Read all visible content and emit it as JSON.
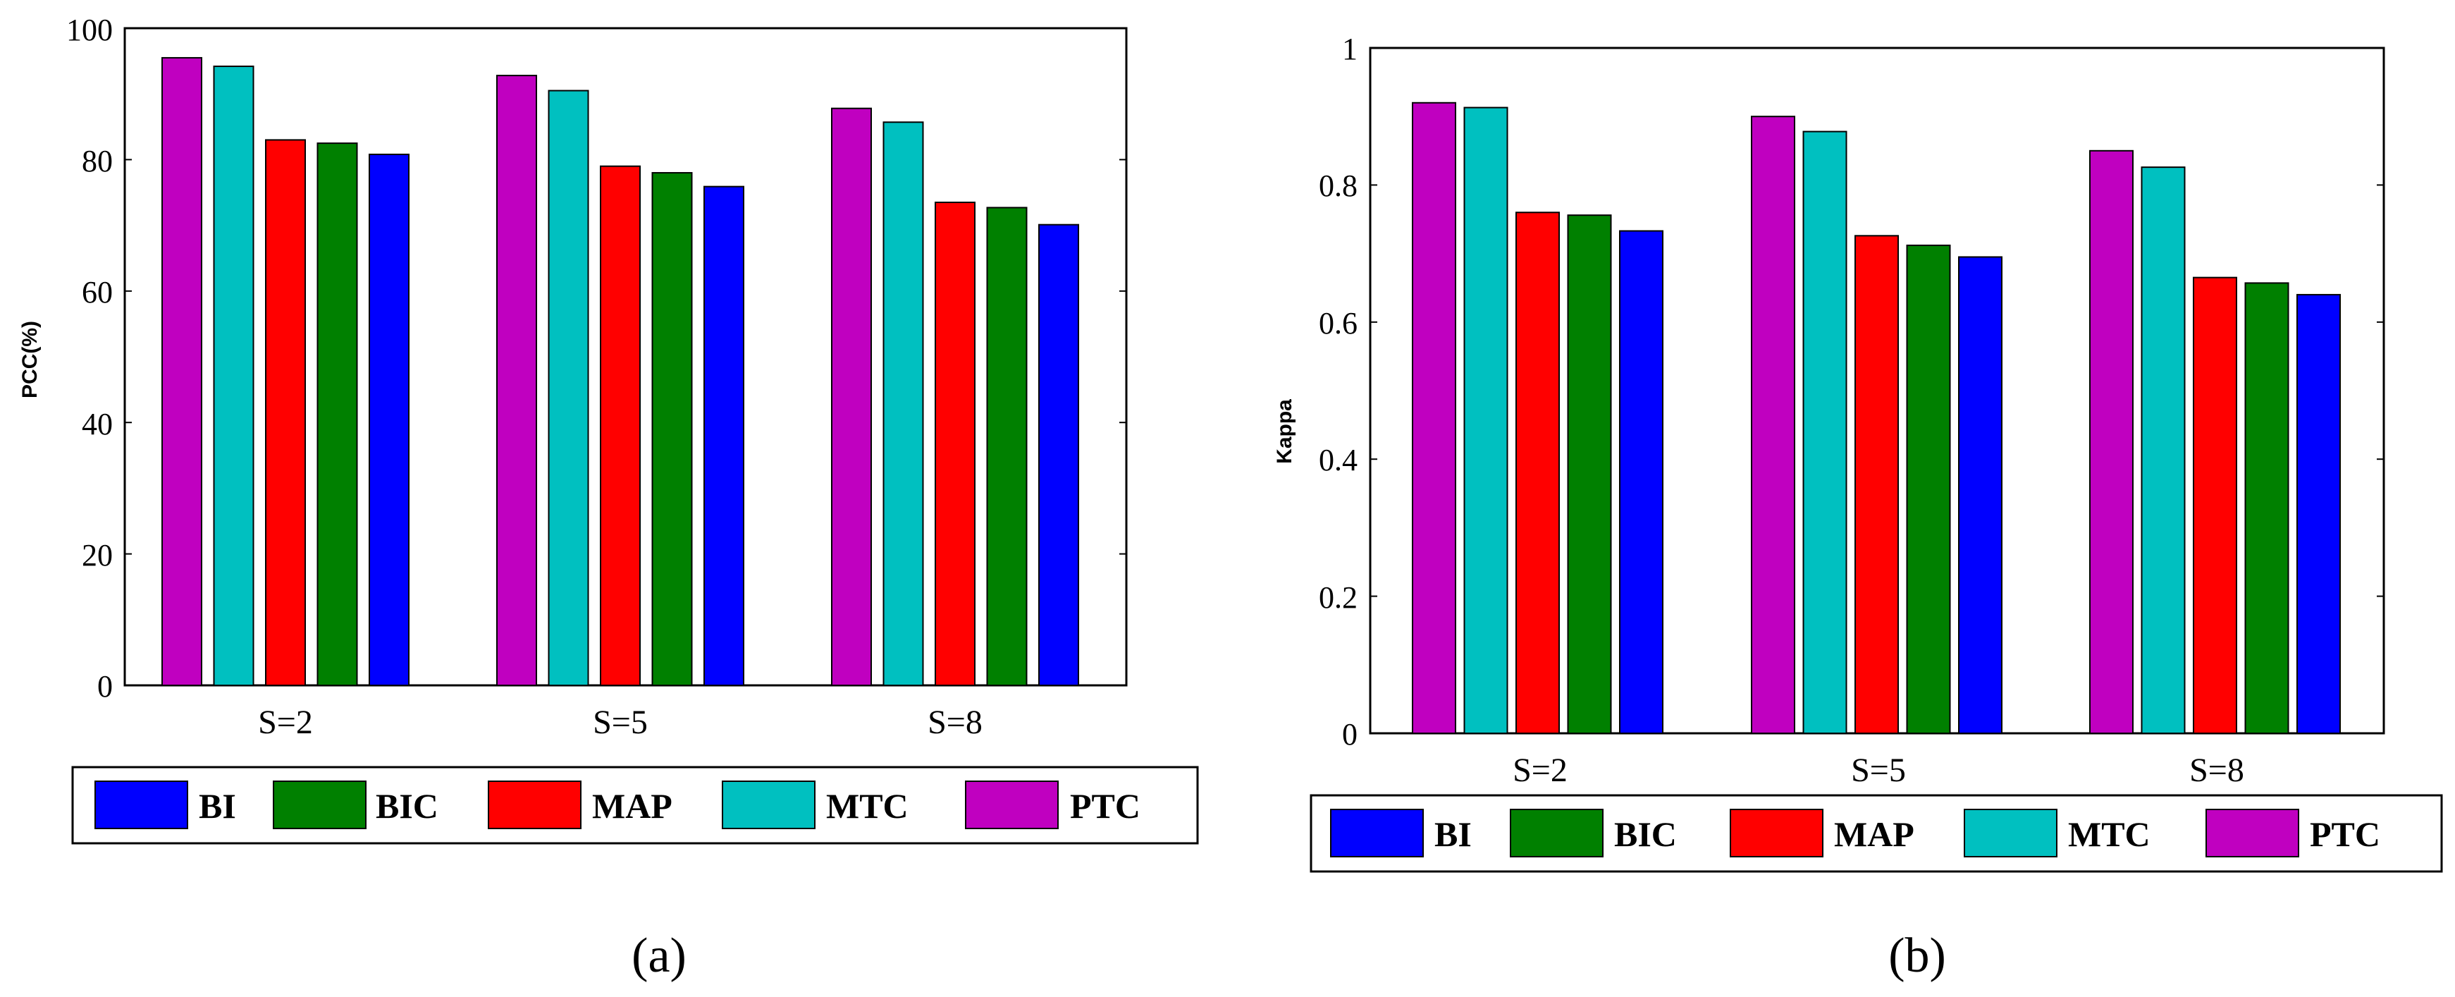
{
  "colors": {
    "BI": "#0000FF",
    "BIC": "#008000",
    "MAP": "#FF0000",
    "MTC": "#00C0C0",
    "PTC": "#C000C0"
  },
  "legend_order": [
    "BI",
    "BIC",
    "MAP",
    "MTC",
    "PTC"
  ],
  "chart_data": [
    {
      "type": "bar",
      "caption": "(a)",
      "ylabel": "PCC(%)",
      "xlabel": "",
      "ylim": [
        0,
        100
      ],
      "yticks": [
        0,
        20,
        40,
        60,
        80,
        100
      ],
      "ytick_labels": [
        "0",
        "20",
        "40",
        "60",
        "80",
        "100"
      ],
      "categories": [
        "S=2",
        "S=5",
        "S=8"
      ],
      "series": [
        {
          "name": "PTC",
          "values": [
            95.5,
            92.8,
            87.8
          ]
        },
        {
          "name": "MTC",
          "values": [
            94.2,
            90.5,
            85.7
          ]
        },
        {
          "name": "MAP",
          "values": [
            83,
            79,
            73.5
          ]
        },
        {
          "name": "BIC",
          "values": [
            82.5,
            78,
            72.7
          ]
        },
        {
          "name": "BI",
          "values": [
            80.8,
            75.9,
            70.1
          ]
        }
      ],
      "legend": [
        "BI",
        "BIC",
        "MAP",
        "MTC",
        "PTC"
      ]
    },
    {
      "type": "bar",
      "caption": "(b)",
      "ylabel": "Kappa",
      "xlabel": "",
      "ylim": [
        0,
        1
      ],
      "yticks": [
        0,
        0.2,
        0.4,
        0.6,
        0.8,
        1
      ],
      "ytick_labels": [
        "0",
        "0.2",
        "0.4",
        "0.6",
        "0.8",
        "1"
      ],
      "categories": [
        "S=2",
        "S=5",
        "S=8"
      ],
      "series": [
        {
          "name": "PTC",
          "values": [
            0.92,
            0.9,
            0.85
          ]
        },
        {
          "name": "MTC",
          "values": [
            0.913,
            0.878,
            0.826
          ]
        },
        {
          "name": "MAP",
          "values": [
            0.76,
            0.726,
            0.665
          ]
        },
        {
          "name": "BIC",
          "values": [
            0.756,
            0.712,
            0.657
          ]
        },
        {
          "name": "BI",
          "values": [
            0.733,
            0.695,
            0.64
          ]
        }
      ],
      "legend": [
        "BI",
        "BIC",
        "MAP",
        "MTC",
        "PTC"
      ]
    }
  ]
}
